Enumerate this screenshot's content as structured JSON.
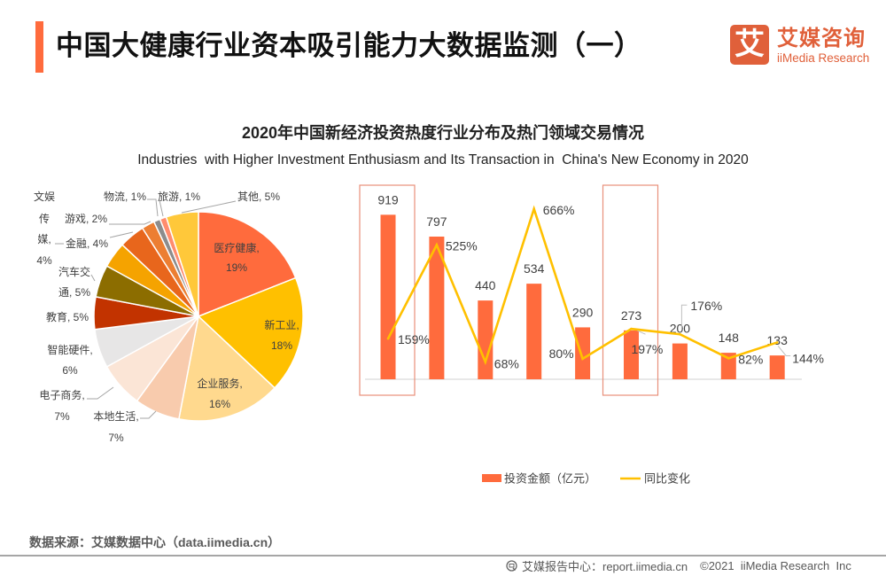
{
  "header": {
    "title": "中国大健康行业资本吸引能力大数据监测（一）",
    "accent_color": "#FF6B3D",
    "logo": {
      "mark": "艾",
      "name_cn": "艾媒咨询",
      "name_en": "iiMedia Research",
      "color": "#E0603A"
    }
  },
  "chart_data": [
    {
      "type": "pie",
      "title": "2020年中国新经济投资热度行业分布及热门领域交易情况",
      "subtitle": "Industries  with Higher Investment Enthusiasm and Its Transaction in  China's New Economy in 2020",
      "unit": "%",
      "start_angle": "12 o'clock",
      "direction": "clockwise",
      "legend": "none (data labels)",
      "slices": [
        {
          "label": "医疗健康",
          "value": 19,
          "color": "#FF6B3D",
          "label_lines": [
            "医疗健康,",
            "19%"
          ],
          "label_placement": "inside"
        },
        {
          "label": "新工业",
          "value": 18,
          "color": "#FFC000",
          "label_lines": [
            "新工业,",
            "18%"
          ],
          "label_placement": "inside"
        },
        {
          "label": "企业服务",
          "value": 16,
          "color": "#FFD98E",
          "label_lines": [
            "企业服务,",
            "16%"
          ],
          "label_placement": "inside"
        },
        {
          "label": "本地生活",
          "value": 7,
          "color": "#F8CBAD",
          "label_lines": [
            "本地生活,",
            "7%"
          ],
          "label_placement": "outside"
        },
        {
          "label": "电子商务",
          "value": 7,
          "color": "#FBE5D6",
          "label_lines": [
            "电子商务,",
            "7%"
          ],
          "label_placement": "outside"
        },
        {
          "label": "智能硬件",
          "value": 6,
          "color": "#E7E6E6",
          "label_lines": [
            "智能硬件,",
            "6%"
          ],
          "label_placement": "outside"
        },
        {
          "label": "教育",
          "value": 5,
          "color": "#C23300",
          "label_lines": [
            "教育, 5%"
          ],
          "label_placement": "outside"
        },
        {
          "label": "汽车交通",
          "value": 5,
          "color": "#8C6D00",
          "label_lines": [
            "汽车交",
            "通, 5%"
          ],
          "label_placement": "outside"
        },
        {
          "label": "文娱传媒",
          "value": 4,
          "color": "#F5A300",
          "label_lines": [
            "文娱",
            "传",
            "媒,",
            "4%"
          ],
          "label_placement": "outside"
        },
        {
          "label": "金融",
          "value": 4,
          "color": "#E8661C",
          "label_lines": [
            "金融, 4%"
          ],
          "label_placement": "outside"
        },
        {
          "label": "游戏",
          "value": 2,
          "color": "#EC7E32",
          "label_lines": [
            "游戏, 2%"
          ],
          "label_placement": "outside"
        },
        {
          "label": "物流",
          "value": 1,
          "color": "#8C8C8C",
          "label_lines": [
            "物流, 1%"
          ],
          "label_placement": "outside"
        },
        {
          "label": "旅游",
          "value": 1,
          "color": "#FF8C6E",
          "label_lines": [
            "旅游, 1%"
          ],
          "label_placement": "outside"
        },
        {
          "label": "其他",
          "value": 5,
          "color": "#FFC83A",
          "label_lines": [
            "其他, 5%"
          ],
          "label_placement": "outside"
        }
      ]
    },
    {
      "type": "bar+line",
      "title": "2020年中国新经济投资热度行业分布及热门领域交易情况",
      "subtitle": "Industries  with Higher Investment Enthusiasm and Its Transaction in  China's New Economy in 2020",
      "xlabel": "",
      "ylabel": "",
      "y2label": "",
      "xticks_shown": false,
      "ylim": [
        0,
        1000
      ],
      "y2lim": [
        0,
        700
      ],
      "grid": false,
      "legend": {
        "placement": "bottom",
        "items": [
          {
            "label": "投资金额（亿元）",
            "type": "bar",
            "color": "#FF6B3D"
          },
          {
            "label": "同比变化",
            "type": "line",
            "color": "#FFC000"
          }
        ]
      },
      "series": [
        {
          "name": "投资金额（亿元）",
          "type": "bar",
          "axis": "left",
          "color": "#FF6B3D",
          "values": [
            919,
            797,
            440,
            534,
            290,
            273,
            200,
            148,
            133
          ],
          "data_labels": [
            "919",
            "797",
            "440",
            "534",
            "290",
            "273",
            "200",
            "148",
            "133"
          ]
        },
        {
          "name": "同比变化",
          "type": "line",
          "axis": "right",
          "unit": "%",
          "color": "#FFC000",
          "values": [
            159,
            525,
            68,
            666,
            80,
            197,
            176,
            82,
            144
          ],
          "data_labels": [
            "159%",
            "525%",
            "68%",
            "666%",
            "80%",
            "197%",
            "176%",
            "82%",
            "144%"
          ]
        }
      ],
      "highlighted_bars": [
        0,
        5
      ],
      "highlight_color": "#E8907A"
    }
  ],
  "footer": {
    "source": "数据来源：艾媒数据中心（data.iimedia.cn）",
    "report_center": "艾媒报告中心：report.iimedia.cn",
    "copyright": "©2021  iiMedia Research  Inc",
    "icon": "globe-report-icon"
  }
}
